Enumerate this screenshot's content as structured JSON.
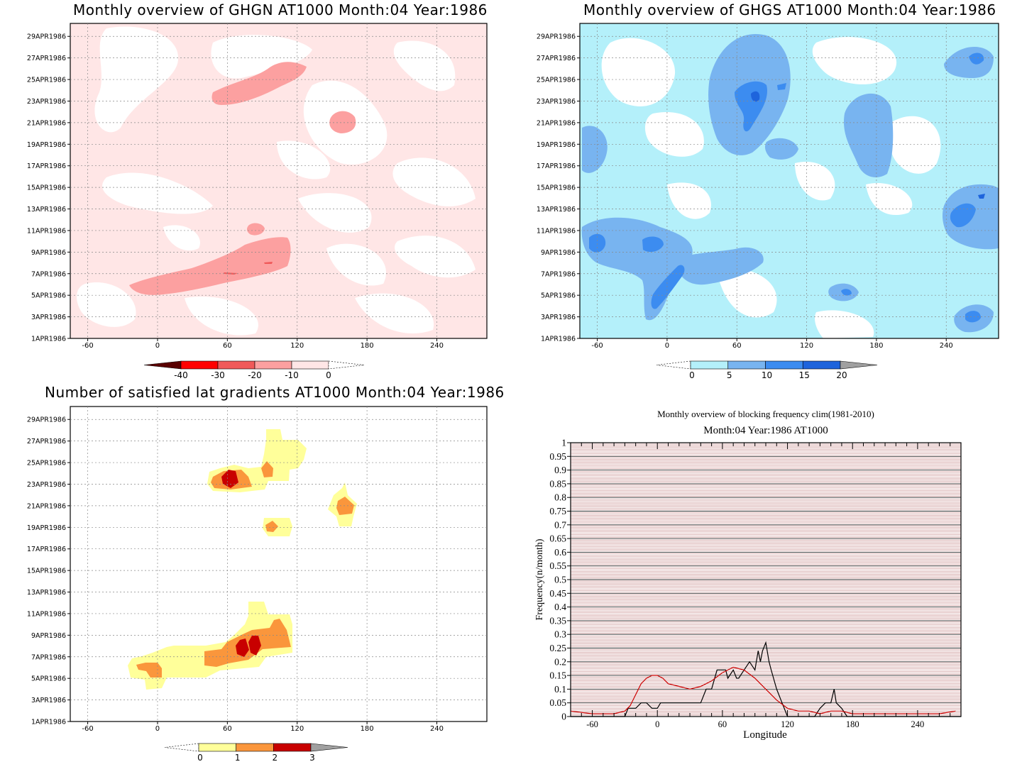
{
  "panels": [
    {
      "title": "Monthly overview of GHGN AT1000 Month:04 Year:1986",
      "date_ticks": [
        "1APR1986",
        "3APR1986",
        "5APR1986",
        "7APR1986",
        "9APR1986",
        "11APR1986",
        "13APR1986",
        "15APR1986",
        "17APR1986",
        "19APR1986",
        "21APR1986",
        "23APR1986",
        "25APR1986",
        "27APR1986",
        "29APR1986"
      ],
      "lon_ticks": [
        "-60",
        "0",
        "60",
        "120",
        "180",
        "240"
      ],
      "colorbar": {
        "labels": [
          "-40",
          "-30",
          "-20",
          "-10",
          "0"
        ],
        "colors": [
          "#5a0000",
          "#ff0000",
          "#f05a5a",
          "#fca0a0",
          "#ffe6e6"
        ]
      }
    },
    {
      "title": "Monthly overview of GHGS AT1000 Month:04 Year:1986",
      "date_ticks": [
        "1APR1986",
        "3APR1986",
        "5APR1986",
        "7APR1986",
        "9APR1986",
        "11APR1986",
        "13APR1986",
        "15APR1986",
        "17APR1986",
        "19APR1986",
        "21APR1986",
        "23APR1986",
        "25APR1986",
        "27APR1986",
        "29APR1986"
      ],
      "lon_ticks": [
        "-60",
        "0",
        "60",
        "120",
        "180",
        "240"
      ],
      "colorbar": {
        "labels": [
          "0",
          "5",
          "10",
          "15",
          "20"
        ],
        "colors": [
          "#b4f0fa",
          "#78b4f0",
          "#3c8cf0",
          "#1e64dc",
          "#a0a0a0"
        ]
      }
    },
    {
      "title": "Number of satisfied lat gradients AT1000 Month:04 Year:1986",
      "date_ticks": [
        "1APR1986",
        "3APR1986",
        "5APR1986",
        "7APR1986",
        "9APR1986",
        "11APR1986",
        "13APR1986",
        "15APR1986",
        "17APR1986",
        "19APR1986",
        "21APR1986",
        "23APR1986",
        "25APR1986",
        "27APR1986",
        "29APR1986"
      ],
      "lon_ticks": [
        "-60",
        "0",
        "60",
        "120",
        "180",
        "240"
      ],
      "colorbar": {
        "labels": [
          "0",
          "1",
          "2",
          "3"
        ],
        "colors": [
          "#ffff9a",
          "#fa963c",
          "#c80000",
          "#a0a0a0"
        ]
      }
    }
  ],
  "chart_data": {
    "type": "line",
    "title": "Monthly overview of blocking frequency clim(1981-2010)",
    "subtitle": "Month:04 Year:1986  AT1000",
    "xlabel": "Longitude",
    "ylabel": "Frequency(n/month)",
    "xlim": [
      -80,
      280
    ],
    "ylim": [
      0,
      1
    ],
    "x_ticks": [
      "-60",
      "0",
      "60",
      "120",
      "180",
      "240"
    ],
    "y_ticks": [
      "0",
      "0.05",
      "0.1",
      "0.15",
      "0.2",
      "0.25",
      "0.3",
      "0.35",
      "0.4",
      "0.45",
      "0.5",
      "0.55",
      "0.6",
      "0.65",
      "0.7",
      "0.75",
      "0.8",
      "0.85",
      "0.9",
      "0.95",
      "1"
    ],
    "series": [
      {
        "color": "#000000",
        "x": [
          -80,
          -30,
          -27,
          -20,
          -15,
          -10,
          -5,
          0,
          3,
          10,
          20,
          30,
          40,
          45,
          50,
          55,
          60,
          63,
          65,
          70,
          73,
          75,
          80,
          85,
          90,
          93,
          95,
          97,
          100,
          103,
          105,
          110,
          115,
          117,
          120,
          130,
          145,
          150,
          155,
          160,
          163,
          165,
          170,
          175,
          280
        ],
        "y": [
          0,
          0,
          0.03,
          0.03,
          0.05,
          0.05,
          0.03,
          0.03,
          0.05,
          0.05,
          0.05,
          0.05,
          0.05,
          0.1,
          0.1,
          0.17,
          0.17,
          0.17,
          0.14,
          0.17,
          0.14,
          0.14,
          0.17,
          0.2,
          0.17,
          0.24,
          0.2,
          0.24,
          0.27,
          0.2,
          0.17,
          0.1,
          0.05,
          0.03,
          0,
          0,
          0,
          0.03,
          0.05,
          0.05,
          0.1,
          0.05,
          0.03,
          0,
          0
        ]
      },
      {
        "color": "#cc0000",
        "x": [
          -80,
          -60,
          -50,
          -40,
          -30,
          -25,
          -20,
          -15,
          -10,
          -5,
          0,
          5,
          10,
          20,
          30,
          40,
          50,
          60,
          70,
          80,
          90,
          100,
          110,
          120,
          130,
          140,
          150,
          160,
          170,
          180,
          200,
          220,
          240,
          260,
          275
        ],
        "y": [
          0.02,
          0.01,
          0.01,
          0.01,
          0.02,
          0.04,
          0.08,
          0.12,
          0.14,
          0.15,
          0.15,
          0.14,
          0.12,
          0.11,
          0.1,
          0.11,
          0.13,
          0.16,
          0.18,
          0.17,
          0.14,
          0.1,
          0.06,
          0.03,
          0.02,
          0.02,
          0.01,
          0.02,
          0.02,
          0.01,
          0.01,
          0.01,
          0.01,
          0.01,
          0.02
        ]
      }
    ]
  }
}
